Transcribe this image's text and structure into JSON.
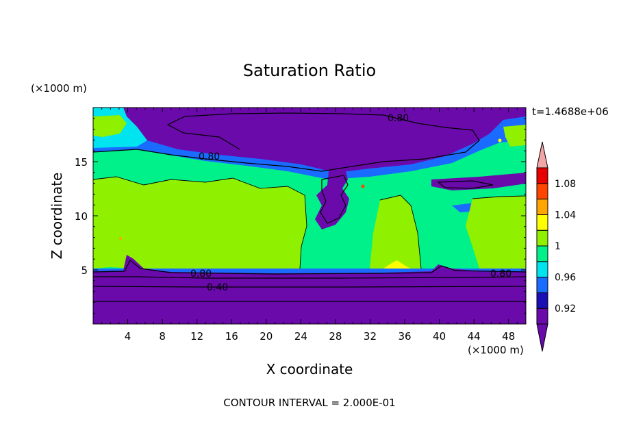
{
  "chart_data": {
    "type": "heatmap",
    "title": "Saturation Ratio",
    "xlabel": "X coordinate",
    "ylabel": "Z coordinate",
    "x_unit": "(×1000 m)",
    "y_unit": "(×1000 m)",
    "time_label": "t=1.4688e+06",
    "footer": "CONTOUR INTERVAL = 2.000E-01",
    "xlim": [
      0,
      50
    ],
    "ylim": [
      0,
      20
    ],
    "xticks": [
      4,
      8,
      12,
      16,
      20,
      24,
      28,
      32,
      36,
      40,
      44,
      48
    ],
    "yticks": [
      5,
      10,
      15
    ],
    "colorbar": {
      "labels": [
        "0.92",
        "0.96",
        "1",
        "1.04",
        "1.08"
      ],
      "bins": [
        {
          "color": "#6a0aab"
        },
        {
          "color": "#1a0fb5"
        },
        {
          "color": "#1a6bff"
        },
        {
          "color": "#00e4f0"
        },
        {
          "color": "#00f08a"
        },
        {
          "color": "#8ff000"
        },
        {
          "color": "#ffff00"
        },
        {
          "color": "#ffa500"
        },
        {
          "color": "#ff4500"
        },
        {
          "color": "#e80000"
        }
      ],
      "low_color": "#6a0aab",
      "high_color": "#f4a6a6"
    },
    "contour_labels": [
      "0.80",
      "0.80",
      "0.80",
      "0.80",
      "0.40"
    ]
  }
}
